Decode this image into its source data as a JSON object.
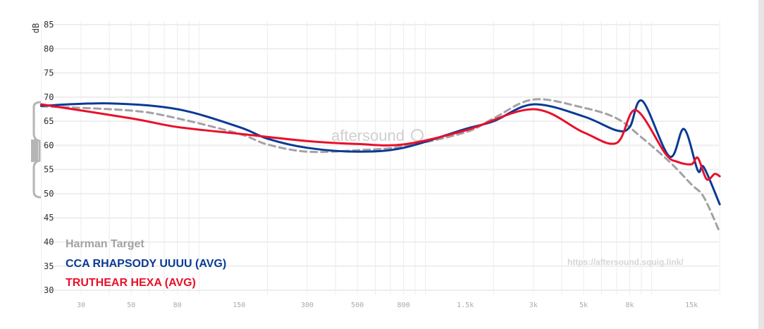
{
  "chart_data": {
    "type": "line",
    "title": "",
    "ylabel": "dB",
    "xlabel": "",
    "xscale": "log",
    "xlim": [
      20,
      20000
    ],
    "ylim": [
      30,
      85
    ],
    "grid": true,
    "yticks": [
      85,
      80,
      75,
      70,
      65,
      60,
      55,
      50,
      45,
      40,
      35,
      30
    ],
    "xticks": [
      {
        "value": 30,
        "label": "30"
      },
      {
        "value": 50,
        "label": "50"
      },
      {
        "value": 80,
        "label": "80"
      },
      {
        "value": 150,
        "label": "150"
      },
      {
        "value": 300,
        "label": "300"
      },
      {
        "value": 500,
        "label": "500"
      },
      {
        "value": 800,
        "label": "800"
      },
      {
        "value": 1500,
        "label": "1.5k"
      },
      {
        "value": 3000,
        "label": "3k"
      },
      {
        "value": 5000,
        "label": "5k"
      },
      {
        "value": 8000,
        "label": "8k"
      },
      {
        "value": 15000,
        "label": "15k"
      }
    ],
    "legend_placement": "bottom-left",
    "series": [
      {
        "name": "Harman Target",
        "color": "#a3a1a6",
        "dashed": true,
        "x": [
          20,
          50,
          80,
          150,
          200,
          300,
          500,
          800,
          1500,
          2000,
          3000,
          5000,
          7000,
          9000,
          12000,
          15000,
          17000,
          20000
        ],
        "y": [
          68.1,
          67.2,
          65.6,
          62.4,
          60.2,
          58.7,
          59.0,
          59.8,
          62.7,
          65.6,
          69.5,
          67.8,
          65.6,
          61.7,
          56.6,
          51.9,
          49.3,
          42.0
        ]
      },
      {
        "name": "CCA RHAPSODY UUUU (AVG)",
        "color": "#0a3a94",
        "dashed": false,
        "x": [
          20,
          40,
          80,
          150,
          200,
          300,
          500,
          800,
          1500,
          2000,
          3000,
          5000,
          7000,
          8000,
          9100,
          12000,
          13900,
          16000,
          17000,
          20000
        ],
        "y": [
          68.2,
          68.7,
          67.5,
          63.8,
          61.4,
          59.5,
          58.7,
          59.5,
          63.4,
          65.0,
          68.5,
          66.0,
          63.1,
          63.8,
          69.2,
          57.7,
          63.4,
          54.8,
          55.5,
          47.8
        ]
      },
      {
        "name": "TRUTHEAR HEXA (AVG)",
        "color": "#e8102a",
        "dashed": false,
        "x": [
          20,
          50,
          80,
          150,
          300,
          500,
          800,
          1500,
          3000,
          5000,
          7000,
          8500,
          11500,
          13000,
          15000,
          16000,
          17500,
          19000,
          20000
        ],
        "y": [
          68.5,
          65.6,
          63.8,
          62.4,
          60.9,
          60.3,
          60.2,
          63.1,
          67.5,
          62.7,
          60.5,
          67.3,
          58.3,
          56.6,
          56.1,
          57.4,
          53.0,
          54.1,
          53.6
        ]
      }
    ]
  },
  "watermark": "aftersound",
  "url": "https://aftersound.squig.link/"
}
